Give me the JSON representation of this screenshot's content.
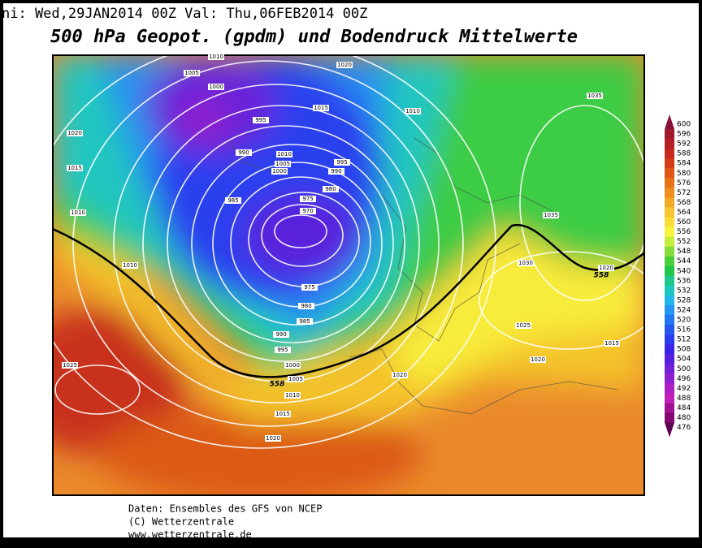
{
  "header": {
    "init_line": "ni: Wed,29JAN2014 00Z Val: Thu,06FEB2014 00Z",
    "title": "500 hPa Geopot. (gpdm) und Bodendruck Mittelwerte"
  },
  "map": {
    "isobar_labels": [
      1010,
      1005,
      1000,
      1020,
      1015,
      1010,
      1035,
      995,
      990,
      1010,
      1005,
      1000,
      995,
      990,
      980,
      985,
      975,
      970,
      975,
      980,
      985,
      990,
      995,
      1000,
      1005,
      1010,
      1015,
      1020,
      1020,
      1015,
      1010,
      1010,
      1025,
      1020,
      1025,
      1030,
      1035,
      1020,
      1015,
      1020
    ],
    "contour_labels": [
      558,
      558
    ]
  },
  "colorbar": {
    "levels": [
      600,
      596,
      592,
      588,
      584,
      580,
      576,
      572,
      568,
      564,
      560,
      556,
      552,
      548,
      544,
      540,
      536,
      532,
      528,
      524,
      520,
      516,
      512,
      508,
      504,
      500,
      496,
      492,
      488,
      484,
      480,
      476
    ],
    "colors": [
      "#8a1238",
      "#a01a2c",
      "#b41e24",
      "#c8281c",
      "#d63c14",
      "#e05614",
      "#e87218",
      "#ee8e1e",
      "#f2aa26",
      "#f6c42e",
      "#fadc36",
      "#f6f43c",
      "#c8ee3c",
      "#86de3a",
      "#4ccf3c",
      "#22c64a",
      "#1ec88a",
      "#1ec6c2",
      "#22b6ea",
      "#2296f2",
      "#2278f2",
      "#2258f0",
      "#2a3cee",
      "#3a24e6",
      "#5620de",
      "#7420d6",
      "#9020ce",
      "#ae20c6",
      "#c020b8",
      "#a01292",
      "#820a72",
      "#600052"
    ]
  },
  "footer": {
    "lines": [
      "Daten: Ensembles des GFS von NCEP",
      "(C) Wetterzentrale",
      "www.wetterzentrale.de"
    ]
  }
}
